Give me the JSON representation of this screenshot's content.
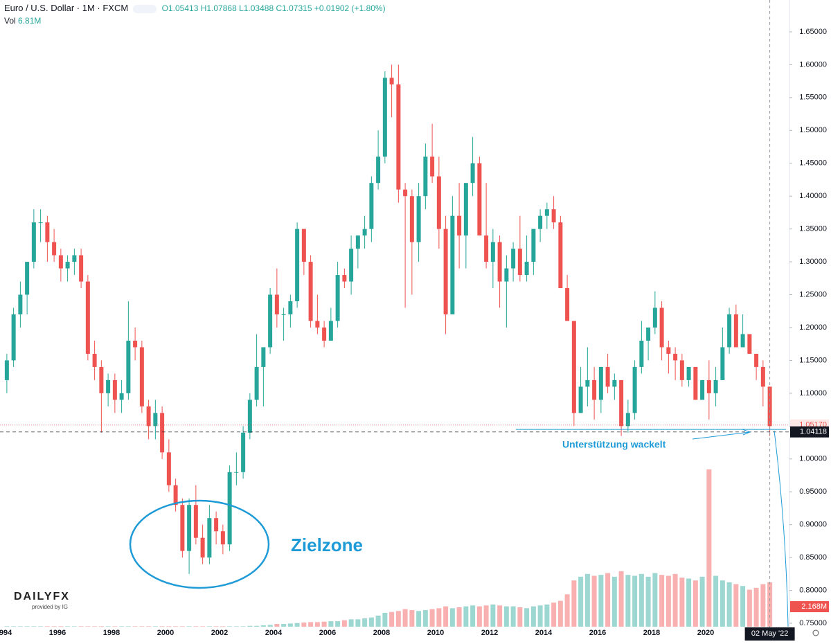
{
  "chart_data": {
    "type": "candlestick",
    "symbol": "Euro / U.S. Dollar",
    "interval": "1M",
    "source": "FXCM",
    "ohlc_text": "O1.05413 H1.07868 L1.03488 C1.07315 +0.01902 (+1.80%)",
    "volume_title": "Vol",
    "volume_text": "6.81M",
    "up_color": "#26a69a",
    "down_color": "#ef5350",
    "x": [
      1994.125,
      1994.375,
      1994.625,
      1994.875,
      1995.125,
      1995.375,
      1995.625,
      1995.875,
      1996.125,
      1996.375,
      1996.625,
      1996.875,
      1997.125,
      1997.375,
      1997.625,
      1997.875,
      1998.125,
      1998.375,
      1998.625,
      1998.875,
      1999.125,
      1999.375,
      1999.625,
      1999.875,
      2000.125,
      2000.375,
      2000.625,
      2000.875,
      2001.125,
      2001.375,
      2001.625,
      2001.875,
      2002.125,
      2002.375,
      2002.625,
      2002.875,
      2003.125,
      2003.375,
      2003.625,
      2003.875,
      2004.125,
      2004.375,
      2004.625,
      2004.875,
      2005.125,
      2005.375,
      2005.625,
      2005.875,
      2006.125,
      2006.375,
      2006.625,
      2006.875,
      2007.125,
      2007.375,
      2007.625,
      2007.875,
      2008.125,
      2008.375,
      2008.625,
      2008.875,
      2009.125,
      2009.375,
      2009.625,
      2009.875,
      2010.125,
      2010.375,
      2010.625,
      2010.875,
      2011.125,
      2011.375,
      2011.625,
      2011.875,
      2012.125,
      2012.375,
      2012.625,
      2012.875,
      2013.125,
      2013.375,
      2013.625,
      2013.875,
      2014.125,
      2014.375,
      2014.625,
      2014.875,
      2015.125,
      2015.375,
      2015.625,
      2015.875,
      2016.125,
      2016.375,
      2016.625,
      2016.875,
      2017.125,
      2017.375,
      2017.625,
      2017.875,
      2018.125,
      2018.375,
      2018.625,
      2018.875,
      2019.125,
      2019.375,
      2019.625,
      2019.875,
      2020.125,
      2020.375,
      2020.625,
      2020.875,
      2021.125,
      2021.375,
      2021.625,
      2021.875,
      2022.125,
      2022.375
    ],
    "open": [
      1.12,
      1.15,
      1.22,
      1.25,
      1.3,
      1.36,
      1.36,
      1.33,
      1.31,
      1.29,
      1.3,
      1.31,
      1.27,
      1.16,
      1.14,
      1.1,
      1.12,
      1.09,
      1.1,
      1.18,
      1.17,
      1.08,
      1.05,
      1.07,
      1.01,
      0.96,
      0.93,
      0.86,
      0.93,
      0.88,
      0.85,
      0.91,
      0.89,
      0.87,
      0.98,
      0.98,
      1.04,
      1.09,
      1.14,
      1.17,
      1.25,
      1.22,
      1.22,
      1.24,
      1.35,
      1.3,
      1.21,
      1.2,
      1.18,
      1.21,
      1.28,
      1.27,
      1.32,
      1.34,
      1.35,
      1.42,
      1.46,
      1.58,
      1.57,
      1.41,
      1.4,
      1.33,
      1.4,
      1.46,
      1.43,
      1.35,
      1.22,
      1.37,
      1.34,
      1.42,
      1.45,
      1.34,
      1.3,
      1.33,
      1.27,
      1.29,
      1.32,
      1.28,
      1.3,
      1.35,
      1.37,
      1.38,
      1.36,
      1.26,
      1.21,
      1.07,
      1.11,
      1.12,
      1.09,
      1.14,
      1.11,
      1.12,
      1.05,
      1.07,
      1.14,
      1.18,
      1.2,
      1.23,
      1.17,
      1.16,
      1.15,
      1.12,
      1.14,
      1.09,
      1.12,
      1.1,
      1.12,
      1.17,
      1.22,
      1.17,
      1.19,
      1.16,
      1.14,
      1.11
    ],
    "high": [
      1.16,
      1.23,
      1.27,
      1.3,
      1.38,
      1.38,
      1.37,
      1.35,
      1.32,
      1.31,
      1.32,
      1.32,
      1.28,
      1.18,
      1.15,
      1.13,
      1.13,
      1.12,
      1.24,
      1.2,
      1.18,
      1.09,
      1.09,
      1.08,
      1.03,
      0.97,
      0.94,
      0.94,
      0.96,
      0.9,
      0.93,
      0.92,
      0.9,
      0.99,
      1.01,
      1.05,
      1.1,
      1.19,
      1.17,
      1.26,
      1.29,
      1.23,
      1.25,
      1.36,
      1.35,
      1.31,
      1.25,
      1.21,
      1.23,
      1.3,
      1.29,
      1.34,
      1.34,
      1.37,
      1.43,
      1.5,
      1.59,
      1.6,
      1.6,
      1.42,
      1.41,
      1.42,
      1.48,
      1.51,
      1.46,
      1.37,
      1.4,
      1.42,
      1.42,
      1.49,
      1.46,
      1.42,
      1.35,
      1.34,
      1.31,
      1.33,
      1.37,
      1.34,
      1.35,
      1.38,
      1.39,
      1.4,
      1.37,
      1.28,
      1.21,
      1.14,
      1.17,
      1.14,
      1.14,
      1.16,
      1.13,
      1.12,
      1.09,
      1.15,
      1.21,
      1.2,
      1.255,
      1.24,
      1.18,
      1.17,
      1.16,
      1.14,
      1.14,
      1.12,
      1.15,
      1.14,
      1.2,
      1.23,
      1.235,
      1.22,
      1.19,
      1.16,
      1.15,
      1.11
    ],
    "low": [
      1.1,
      1.14,
      1.2,
      1.22,
      1.29,
      1.33,
      1.3,
      1.3,
      1.27,
      1.27,
      1.28,
      1.26,
      1.15,
      1.12,
      1.04,
      1.08,
      1.07,
      1.07,
      1.09,
      1.15,
      1.07,
      1.03,
      1.03,
      1.0,
      0.95,
      0.92,
      0.85,
      0.825,
      0.87,
      0.84,
      0.84,
      0.87,
      0.855,
      0.86,
      0.96,
      0.97,
      1.03,
      1.08,
      1.08,
      1.16,
      1.2,
      1.18,
      1.2,
      1.23,
      1.28,
      1.2,
      1.19,
      1.17,
      1.18,
      1.2,
      1.26,
      1.25,
      1.29,
      1.32,
      1.33,
      1.41,
      1.45,
      1.52,
      1.39,
      1.23,
      1.25,
      1.3,
      1.38,
      1.42,
      1.32,
      1.19,
      1.22,
      1.29,
      1.29,
      1.4,
      1.34,
      1.29,
      1.26,
      1.23,
      1.2,
      1.27,
      1.27,
      1.27,
      1.28,
      1.33,
      1.35,
      1.35,
      1.26,
      1.21,
      1.05,
      1.07,
      1.08,
      1.06,
      1.07,
      1.1,
      1.09,
      1.035,
      1.04,
      1.06,
      1.13,
      1.15,
      1.19,
      1.15,
      1.13,
      1.12,
      1.11,
      1.11,
      1.09,
      1.09,
      1.06,
      1.08,
      1.12,
      1.16,
      1.17,
      1.17,
      1.16,
      1.12,
      1.08,
      1.035
    ],
    "close": [
      1.15,
      1.22,
      1.25,
      1.3,
      1.36,
      1.36,
      1.33,
      1.31,
      1.29,
      1.3,
      1.31,
      1.27,
      1.16,
      1.14,
      1.1,
      1.12,
      1.09,
      1.1,
      1.18,
      1.17,
      1.08,
      1.05,
      1.07,
      1.01,
      0.96,
      0.93,
      0.86,
      0.93,
      0.88,
      0.85,
      0.91,
      0.89,
      0.87,
      0.98,
      0.98,
      1.04,
      1.09,
      1.14,
      1.17,
      1.25,
      1.22,
      1.22,
      1.24,
      1.35,
      1.3,
      1.21,
      1.2,
      1.18,
      1.21,
      1.28,
      1.27,
      1.32,
      1.34,
      1.35,
      1.42,
      1.46,
      1.58,
      1.57,
      1.41,
      1.4,
      1.33,
      1.4,
      1.46,
      1.43,
      1.35,
      1.22,
      1.37,
      1.34,
      1.42,
      1.45,
      1.34,
      1.3,
      1.33,
      1.27,
      1.29,
      1.32,
      1.28,
      1.3,
      1.35,
      1.37,
      1.38,
      1.36,
      1.26,
      1.21,
      1.07,
      1.11,
      1.12,
      1.09,
      1.14,
      1.11,
      1.12,
      1.05,
      1.07,
      1.14,
      1.18,
      1.2,
      1.23,
      1.17,
      1.16,
      1.15,
      1.12,
      1.14,
      1.09,
      1.12,
      1.1,
      1.12,
      1.17,
      1.22,
      1.17,
      1.19,
      1.16,
      1.14,
      1.11,
      1.05
    ],
    "volume": [
      0.05,
      0.05,
      0.05,
      0.05,
      0.05,
      0.05,
      0.05,
      0.05,
      0.05,
      0.05,
      0.05,
      0.05,
      0.05,
      0.05,
      0.05,
      0.05,
      0.05,
      0.05,
      0.05,
      0.05,
      0.05,
      0.05,
      0.05,
      0.05,
      0.05,
      0.05,
      0.05,
      0.05,
      0.05,
      0.05,
      0.05,
      0.05,
      0.05,
      0.05,
      0.05,
      0.05,
      0.1,
      0.1,
      0.15,
      0.2,
      0.3,
      0.3,
      0.35,
      0.4,
      0.45,
      0.5,
      0.5,
      0.55,
      0.6,
      0.6,
      0.7,
      0.8,
      0.8,
      0.9,
      1.0,
      1.2,
      1.5,
      1.6,
      1.7,
      1.9,
      1.8,
      1.7,
      1.8,
      1.9,
      2.0,
      2.2,
      2.0,
      2.1,
      2.2,
      2.3,
      2.2,
      2.3,
      2.4,
      2.3,
      2.2,
      2.2,
      2.1,
      2.0,
      2.2,
      2.3,
      2.4,
      2.6,
      2.8,
      3.5,
      5.0,
      5.4,
      5.7,
      5.5,
      5.6,
      5.8,
      5.4,
      6.0,
      5.6,
      5.5,
      5.7,
      5.4,
      5.8,
      5.6,
      5.5,
      5.7,
      5.3,
      5.2,
      5.0,
      5.4,
      17.0,
      5.5,
      5.0,
      4.8,
      4.6,
      4.4,
      4.0,
      4.2,
      4.6,
      4.8
    ],
    "xlim": [
      1993.872,
      2023.103
    ],
    "xticks": [
      1994,
      1996,
      1998,
      2000,
      2002,
      2004,
      2006,
      2008,
      2010,
      2012,
      2014,
      2016,
      2018,
      2020
    ],
    "ylim": [
      0.7374,
      1.6984
    ],
    "yticks": [
      {
        "value": 0.75,
        "label": "0.75000"
      },
      {
        "value": 0.8,
        "label": "0.80000"
      },
      {
        "value": 0.85,
        "label": "0.85000"
      },
      {
        "value": 0.9,
        "label": "0.90000"
      },
      {
        "value": 0.95,
        "label": "0.95000"
      },
      {
        "value": 1.0,
        "label": "1.00000"
      },
      {
        "value": 1.05,
        "label": "1.05000"
      },
      {
        "value": 1.1,
        "label": "1.10000"
      },
      {
        "value": 1.15,
        "label": "1.15000"
      },
      {
        "value": 1.2,
        "label": "1.20000"
      },
      {
        "value": 1.25,
        "label": "1.25000"
      },
      {
        "value": 1.3,
        "label": "1.30000"
      },
      {
        "value": 1.35,
        "label": "1.35000"
      },
      {
        "value": 1.4,
        "label": "1.40000"
      },
      {
        "value": 1.45,
        "label": "1.45000"
      },
      {
        "value": 1.5,
        "label": "1.50000"
      },
      {
        "value": 1.55,
        "label": "1.55000"
      },
      {
        "value": 1.6,
        "label": "1.60000"
      },
      {
        "value": 1.65,
        "label": "1.65000"
      }
    ],
    "y2lim": [
      -0.52,
      67.69
    ],
    "price_lines": [
      {
        "value": 1.0517,
        "label": "1.05170",
        "color": "#ef5350"
      },
      {
        "value": 1.04118,
        "label": "1.04118",
        "color": "#131722"
      }
    ],
    "volume_marker": {
      "value": 2.168,
      "label": "2.168M"
    },
    "crosshair": {
      "x": 2022.375,
      "label": "02 May '22"
    },
    "annotations": {
      "target": "Zielzone",
      "support": "Unterstützung wackelt",
      "support_level": 1.045
    },
    "logo": {
      "name": "DAILYFX",
      "sub": "provided by IG"
    }
  }
}
